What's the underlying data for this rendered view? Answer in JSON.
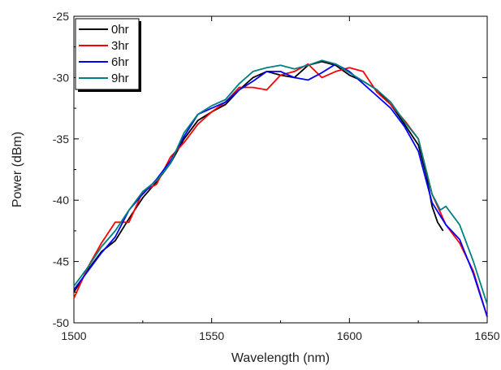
{
  "chart_data": {
    "type": "line",
    "title": "",
    "xlabel": "Wavelength (nm)",
    "ylabel": "Power (dBm)",
    "xlim": [
      1500,
      1650
    ],
    "ylim": [
      -50,
      -25
    ],
    "xticks": [
      1500,
      1550,
      1600,
      1650
    ],
    "yticks": [
      -50,
      -45,
      -40,
      -35,
      -30,
      -25
    ],
    "grid": false,
    "legend_position": "top-left",
    "series": [
      {
        "name": "0hr",
        "color": "#000000",
        "x": [
          1500,
          1505,
          1510,
          1515,
          1520,
          1525,
          1530,
          1535,
          1540,
          1545,
          1550,
          1555,
          1560,
          1565,
          1570,
          1575,
          1580,
          1585,
          1590,
          1595,
          1600,
          1605,
          1610,
          1615,
          1620,
          1625,
          1628,
          1630,
          1632,
          1634
        ],
        "y": [
          -47.5,
          -45.7,
          -44.2,
          -43.3,
          -41.5,
          -39.8,
          -38.5,
          -37.0,
          -35.0,
          -33.5,
          -32.8,
          -32.2,
          -31.0,
          -30.0,
          -29.5,
          -29.8,
          -30.0,
          -29.0,
          -28.7,
          -29.0,
          -29.8,
          -30.3,
          -31.0,
          -32.2,
          -33.8,
          -35.5,
          -38.0,
          -40.5,
          -41.8,
          -42.5
        ]
      },
      {
        "name": "3hr",
        "color": "#ff0000",
        "x": [
          1500,
          1505,
          1510,
          1515,
          1520,
          1525,
          1530,
          1535,
          1540,
          1545,
          1550,
          1555,
          1560,
          1565,
          1570,
          1575,
          1580,
          1585,
          1590,
          1595,
          1600,
          1605,
          1610,
          1615,
          1620,
          1625,
          1630,
          1635,
          1640,
          1645,
          1650
        ],
        "y": [
          -48.0,
          -45.5,
          -43.5,
          -41.8,
          -41.8,
          -39.3,
          -38.7,
          -36.5,
          -35.3,
          -33.8,
          -32.8,
          -32.0,
          -30.8,
          -30.8,
          -31.0,
          -29.8,
          -29.5,
          -28.9,
          -30.0,
          -29.5,
          -29.2,
          -29.5,
          -31.2,
          -32.2,
          -33.5,
          -35.0,
          -39.5,
          -42.0,
          -43.5,
          -45.8,
          -49.5
        ]
      },
      {
        "name": "6hr",
        "color": "#0000ff",
        "x": [
          1500,
          1505,
          1510,
          1515,
          1520,
          1525,
          1530,
          1535,
          1540,
          1545,
          1550,
          1555,
          1560,
          1565,
          1570,
          1575,
          1580,
          1585,
          1590,
          1595,
          1600,
          1605,
          1610,
          1615,
          1620,
          1625,
          1630,
          1635,
          1640,
          1645,
          1650
        ],
        "y": [
          -47.3,
          -45.8,
          -44.3,
          -43.0,
          -40.8,
          -39.5,
          -38.3,
          -36.8,
          -34.8,
          -33.0,
          -32.5,
          -32.0,
          -31.0,
          -30.3,
          -29.5,
          -29.5,
          -30.0,
          -30.2,
          -29.6,
          -28.9,
          -29.5,
          -30.5,
          -31.5,
          -32.5,
          -34.0,
          -36.0,
          -40.2,
          -42.0,
          -43.2,
          -46.0,
          -49.5
        ]
      },
      {
        "name": "9hr",
        "color": "#008080",
        "x": [
          1500,
          1505,
          1510,
          1515,
          1520,
          1525,
          1530,
          1535,
          1540,
          1545,
          1550,
          1555,
          1560,
          1565,
          1570,
          1575,
          1580,
          1585,
          1590,
          1595,
          1600,
          1605,
          1610,
          1615,
          1620,
          1625,
          1630,
          1633,
          1635,
          1640,
          1645,
          1650
        ],
        "y": [
          -47.0,
          -45.5,
          -43.8,
          -42.5,
          -40.8,
          -39.3,
          -38.4,
          -37.0,
          -34.5,
          -33.0,
          -32.3,
          -31.8,
          -30.5,
          -29.5,
          -29.2,
          -29.0,
          -29.3,
          -29.0,
          -28.6,
          -28.9,
          -29.6,
          -30.3,
          -31.0,
          -32.0,
          -33.6,
          -35.0,
          -39.5,
          -40.8,
          -40.5,
          -42.0,
          -45.0,
          -48.5
        ]
      }
    ]
  }
}
